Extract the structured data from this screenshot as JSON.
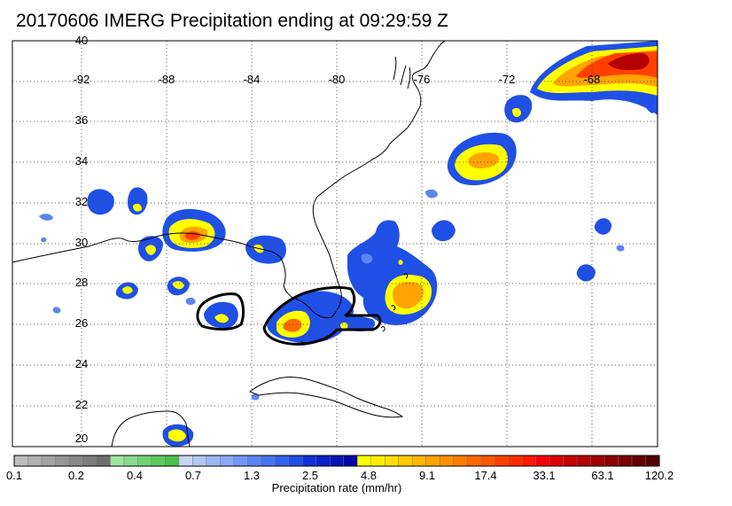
{
  "title": "20170606 IMERG Precipitation ending at 09:29:59 Z",
  "lon_labels": [
    "-92",
    "-88",
    "-84",
    "-80",
    "-76",
    "-72",
    "-68"
  ],
  "lat_labels": [
    "40",
    "36",
    "34",
    "32",
    "30",
    "28",
    "26",
    "24",
    "22",
    "20"
  ],
  "colorbar": {
    "label": "Precipitation rate (mm/hr)",
    "tick_labels": [
      "0.1",
      "0.2",
      "0.4",
      "0.7",
      "1.3",
      "2.5",
      "4.8",
      "9.1",
      "17.4",
      "33.1",
      "63.1",
      "120.2"
    ],
    "colors": [
      "#bdbdbd",
      "#b0b0b0",
      "#a3a3a3",
      "#969696",
      "#8a8a8a",
      "#7d7d7d",
      "#6f6f6f",
      "#9ee59e",
      "#88dc88",
      "#72d372",
      "#5ec95e",
      "#4cbf4c",
      "#c8d4f2",
      "#b2c6f2",
      "#9cb8f2",
      "#88aaf4",
      "#7097f2",
      "#5b86f0",
      "#4775ee",
      "#3262ea",
      "#1f50e6",
      "#1030d8",
      "#0a20c8",
      "#0414b8",
      "#0008a8",
      "#ffff00",
      "#fff000",
      "#ffe000",
      "#ffcc00",
      "#ffb800",
      "#ffa400",
      "#ff9000",
      "#ff7c00",
      "#ff6800",
      "#ff5400",
      "#ff4000",
      "#ff2c00",
      "#ff1800",
      "#f00000",
      "#dc0000",
      "#c80000",
      "#b40000",
      "#a00000",
      "#8c0000",
      "#780000",
      "#640000",
      "#500000"
    ]
  }
}
